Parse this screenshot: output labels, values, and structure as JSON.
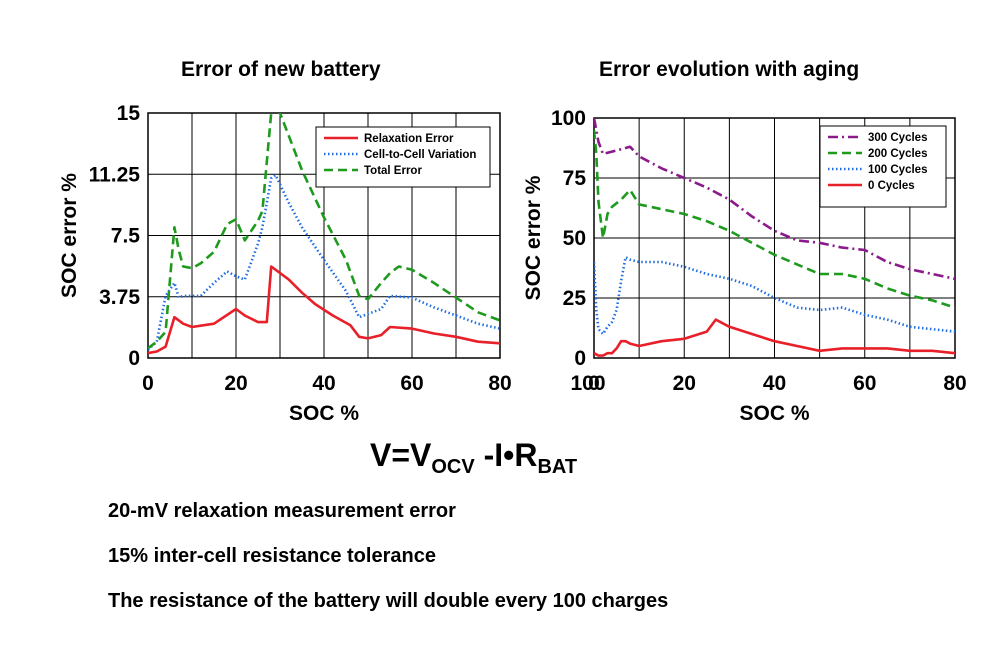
{
  "left_title": "Error of new battery",
  "right_title": "Error evolution with aging",
  "formula": {
    "lhs": "V",
    "eq": "=",
    "v": "V",
    "ocv": "OCV",
    "minus": "-",
    "i": "I",
    "dot": "•",
    "r": "R",
    "bat": "BAT"
  },
  "notes": [
    "20-mV relaxation measurement error",
    "15% inter-cell resistance tolerance",
    "The resistance of the battery will double every 100 charges"
  ],
  "chart_data": [
    {
      "type": "line",
      "title": "Error of new battery",
      "xlabel": "SOC %",
      "ylabel": "SOC error %",
      "xlim": [
        0,
        80
      ],
      "ylim": [
        0,
        15
      ],
      "xticks": [
        "0",
        "20",
        "40",
        "60",
        "80"
      ],
      "yticks": [
        "0",
        "3.75",
        "7.5",
        "11.25",
        "15"
      ],
      "grid": true,
      "legend_position": "top-right",
      "series": [
        {
          "name": "Relaxation Error",
          "color": "#e8202a",
          "style": "solid",
          "x": [
            0,
            2,
            4,
            6,
            8,
            10,
            15,
            20,
            22,
            25,
            27,
            28,
            32,
            35,
            38,
            42,
            46,
            48,
            50,
            53,
            55,
            60,
            65,
            70,
            75,
            80
          ],
          "y": [
            0.3,
            0.4,
            0.7,
            2.5,
            2.1,
            1.9,
            2.1,
            3.0,
            2.6,
            2.2,
            2.2,
            5.6,
            4.8,
            4.0,
            3.3,
            2.6,
            2.0,
            1.3,
            1.2,
            1.4,
            1.9,
            1.8,
            1.5,
            1.3,
            1.0,
            0.9
          ]
        },
        {
          "name": "Cell-to-Cell Variation",
          "color": "#1f6fe0",
          "style": "dotted",
          "x": [
            0,
            2,
            4,
            6,
            7,
            8,
            12,
            15,
            18,
            20,
            22,
            25,
            26,
            28,
            29,
            32,
            35,
            40,
            45,
            48,
            50,
            53,
            55,
            60,
            65,
            70,
            75,
            80
          ],
          "y": [
            0.5,
            1.0,
            3.8,
            4.6,
            3.7,
            3.8,
            3.8,
            4.6,
            5.3,
            5.0,
            4.8,
            7.0,
            8.0,
            11.0,
            11.2,
            9.5,
            8.0,
            6.0,
            4.1,
            2.5,
            2.7,
            3.0,
            3.8,
            3.7,
            3.1,
            2.6,
            2.1,
            1.8
          ]
        },
        {
          "name": "Total Error",
          "color": "#1e9a1e",
          "style": "dashed",
          "x": [
            0,
            2,
            4,
            6,
            7,
            8,
            10,
            12,
            15,
            18,
            20,
            22,
            25,
            26,
            28,
            29,
            30,
            35,
            40,
            45,
            48,
            50,
            53,
            55,
            57,
            60,
            65,
            70,
            75,
            80
          ],
          "y": [
            0.6,
            1.0,
            1.6,
            8.0,
            6.6,
            5.6,
            5.5,
            5.8,
            6.5,
            8.2,
            8.5,
            7.2,
            8.4,
            9.0,
            15,
            16.5,
            15,
            11.5,
            8.6,
            6.0,
            3.8,
            3.6,
            4.6,
            5.2,
            5.6,
            5.4,
            4.6,
            3.7,
            2.8,
            2.3
          ]
        }
      ]
    },
    {
      "type": "line",
      "title": "Error evolution with aging",
      "xlabel": "SOC %",
      "ylabel": "SOC error %",
      "xlim": [
        0,
        80
      ],
      "ylim": [
        0,
        100
      ],
      "xticks": [
        "0",
        "20",
        "40",
        "60",
        "80"
      ],
      "yticks": [
        "0",
        "25",
        "50",
        "75",
        "100"
      ],
      "extra_ticks": [
        "100"
      ],
      "grid": true,
      "legend_position": "top-right",
      "series": [
        {
          "name": "300 Cycles",
          "color": "#8b1a8b",
          "style": "dashdot",
          "x": [
            0,
            0.5,
            1,
            2,
            4,
            6,
            8,
            10,
            15,
            20,
            25,
            30,
            35,
            40,
            45,
            50,
            55,
            60,
            65,
            70,
            75,
            80
          ],
          "y": [
            100,
            95,
            90,
            85,
            86,
            87,
            88,
            84,
            79,
            75,
            71,
            66,
            59,
            53,
            49,
            48,
            46,
            45,
            40,
            37,
            35,
            33
          ]
        },
        {
          "name": "200 Cycles",
          "color": "#1e9a1e",
          "style": "dashed",
          "x": [
            0,
            0.5,
            1,
            2,
            3,
            4,
            6,
            8,
            10,
            15,
            20,
            25,
            30,
            35,
            40,
            45,
            50,
            55,
            60,
            65,
            70,
            75,
            80
          ],
          "y": [
            95,
            85,
            65,
            50,
            60,
            63,
            66,
            70,
            64,
            62,
            60,
            57,
            53,
            48,
            43,
            39,
            35,
            35,
            33,
            29,
            26,
            24,
            21
          ]
        },
        {
          "name": "100 Cycles",
          "color": "#1f6fe0",
          "style": "dotted",
          "x": [
            0,
            0.5,
            1,
            2,
            3,
            4,
            5,
            6,
            7,
            8,
            10,
            15,
            20,
            25,
            30,
            35,
            40,
            45,
            50,
            55,
            60,
            65,
            70,
            75,
            80
          ],
          "y": [
            40,
            20,
            12,
            10,
            13,
            15,
            20,
            32,
            42,
            41,
            40,
            40,
            38,
            35,
            33,
            30,
            25,
            21,
            20,
            21,
            18,
            16,
            13,
            12,
            11
          ]
        },
        {
          "name": "0 Cycles",
          "color": "#e8202a",
          "style": "solid",
          "x": [
            0,
            1,
            2,
            3,
            4,
            5,
            6,
            7,
            8,
            10,
            15,
            20,
            25,
            27,
            30,
            35,
            40,
            45,
            50,
            55,
            60,
            65,
            70,
            75,
            80
          ],
          "y": [
            2,
            1,
            1,
            2,
            2,
            4,
            7,
            7,
            6,
            5,
            7,
            8,
            11,
            16,
            13,
            10,
            7,
            5,
            3,
            4,
            4,
            4,
            3,
            3,
            2
          ]
        }
      ]
    }
  ]
}
